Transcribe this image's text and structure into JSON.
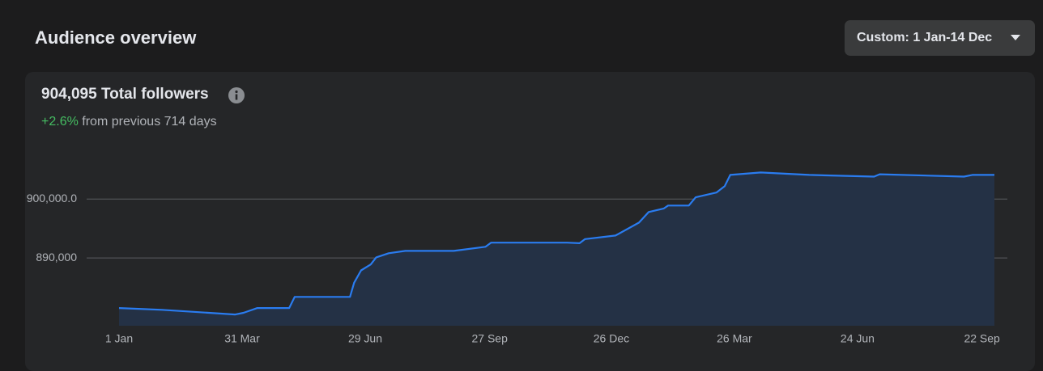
{
  "header": {
    "title": "Audience overview",
    "date_range": "Custom: 1 Jan-14 Dec"
  },
  "summary": {
    "total": "904,095",
    "label": "Total followers",
    "change": "+2.6%",
    "change_text": "from previous 714 days"
  },
  "chart_data": {
    "type": "line",
    "color": "#2a7cf0",
    "area_color": "#243145",
    "grid": true,
    "x": [
      0,
      31,
      84,
      90,
      100,
      123,
      127,
      136,
      167,
      170,
      175,
      182,
      186,
      195,
      207,
      242,
      265,
      269,
      324,
      333,
      337,
      359,
      376,
      383,
      394,
      397,
      412,
      417,
      432,
      438,
      442,
      464,
      499,
      546,
      550,
      611,
      617,
      633
    ],
    "values": [
      881500,
      881200,
      880400,
      880700,
      881500,
      881500,
      883400,
      883400,
      883400,
      885800,
      887900,
      888900,
      890100,
      890800,
      891200,
      891200,
      891900,
      892600,
      892600,
      892500,
      893200,
      893800,
      896000,
      897800,
      898400,
      898900,
      898900,
      900300,
      901100,
      902200,
      904100,
      904500,
      904100,
      903800,
      904200,
      903800,
      904100,
      904100
    ],
    "xlim": [
      0,
      633
    ],
    "xticks": [
      {
        "value": 0,
        "label": "1 Jan"
      },
      {
        "value": 89,
        "label": "31 Mar"
      },
      {
        "value": 178,
        "label": "29 Jun"
      },
      {
        "value": 268,
        "label": "27 Sep"
      },
      {
        "value": 356,
        "label": "26 Dec"
      },
      {
        "value": 445,
        "label": "26 Mar"
      },
      {
        "value": 534,
        "label": "24 Jun"
      },
      {
        "value": 624,
        "label": "22 Sep"
      }
    ],
    "ylim": [
      878500,
      908400
    ],
    "yticks": [
      {
        "value": 890000,
        "label": "890,000"
      },
      {
        "value": 900000,
        "label": "900,000.0"
      }
    ]
  }
}
